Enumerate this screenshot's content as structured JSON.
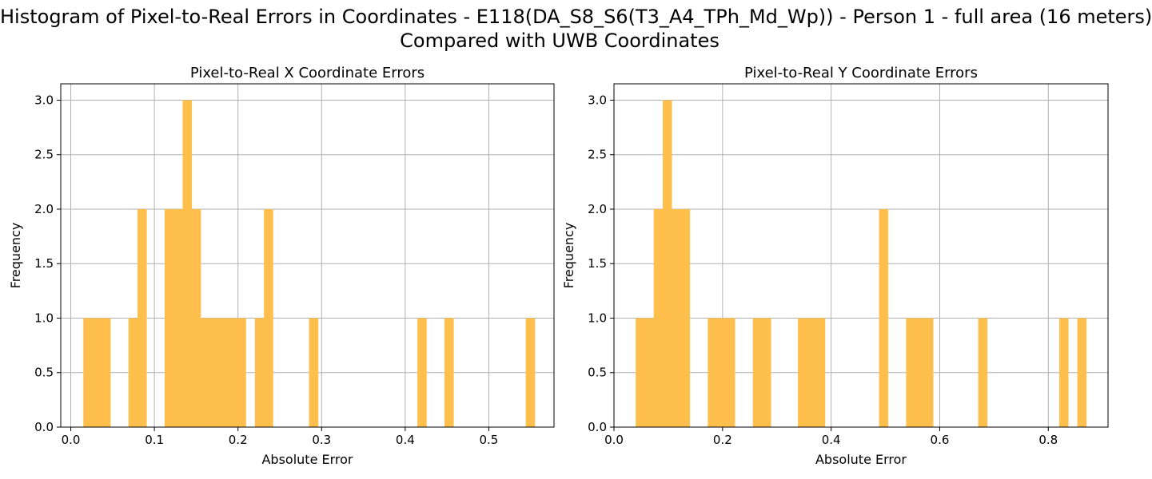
{
  "title_line1": "Histogram of Pixel-to-Real Errors in Coordinates - E118(DA_S8_S6(T3_A4_TPh_Md_Wp)) - Person 1 - full area (16 meters)",
  "title_line2": "Compared with UWB Coordinates",
  "colors": {
    "bar": "#FFBF4D",
    "grid": "#b0b0b0",
    "axis": "#000000"
  },
  "chart_data": [
    {
      "type": "bar",
      "title": "Pixel-to-Real X Coordinate Errors",
      "xlabel": "Absolute Error",
      "ylabel": "Frequency",
      "xlim": [
        -0.012,
        0.578
      ],
      "ylim": [
        0,
        3.15
      ],
      "xticks": [
        0.0,
        0.1,
        0.2,
        0.3,
        0.4,
        0.5
      ],
      "xtick_labels": [
        "0.0",
        "0.1",
        "0.2",
        "0.3",
        "0.4",
        "0.5"
      ],
      "yticks": [
        0.0,
        0.5,
        1.0,
        1.5,
        2.0,
        2.5,
        3.0
      ],
      "ytick_labels": [
        "0.0",
        "0.5",
        "1.0",
        "1.5",
        "2.0",
        "2.5",
        "3.0"
      ],
      "grid": true,
      "bin_width": 0.0108,
      "bins": [
        {
          "x": 0.015,
          "count": 1
        },
        {
          "x": 0.0258,
          "count": 1
        },
        {
          "x": 0.0366,
          "count": 1
        },
        {
          "x": 0.069,
          "count": 1
        },
        {
          "x": 0.0798,
          "count": 2
        },
        {
          "x": 0.1122,
          "count": 2
        },
        {
          "x": 0.123,
          "count": 2
        },
        {
          "x": 0.1338,
          "count": 3
        },
        {
          "x": 0.1446,
          "count": 2
        },
        {
          "x": 0.1554,
          "count": 1
        },
        {
          "x": 0.1662,
          "count": 1
        },
        {
          "x": 0.177,
          "count": 1
        },
        {
          "x": 0.1878,
          "count": 1
        },
        {
          "x": 0.1986,
          "count": 1
        },
        {
          "x": 0.2202,
          "count": 1
        },
        {
          "x": 0.231,
          "count": 2
        },
        {
          "x": 0.285,
          "count": 1
        },
        {
          "x": 0.4146,
          "count": 1
        },
        {
          "x": 0.447,
          "count": 1
        },
        {
          "x": 0.5442,
          "count": 1
        }
      ]
    },
    {
      "type": "bar",
      "title": "Pixel-to-Real Y Coordinate Errors",
      "xlabel": "Absolute Error",
      "ylabel": "Frequency",
      "xlim": [
        0.0,
        0.91
      ],
      "ylim": [
        0,
        3.15
      ],
      "xticks": [
        0.0,
        0.2,
        0.4,
        0.6,
        0.8
      ],
      "xtick_labels": [
        "0.0",
        "0.2",
        "0.4",
        "0.6",
        "0.8"
      ],
      "yticks": [
        0.0,
        0.5,
        1.0,
        1.5,
        2.0,
        2.5,
        3.0
      ],
      "ytick_labels": [
        "0.0",
        "0.5",
        "1.0",
        "1.5",
        "2.0",
        "2.5",
        "3.0"
      ],
      "grid": true,
      "bin_width": 0.0166,
      "bins": [
        {
          "x": 0.04,
          "count": 1
        },
        {
          "x": 0.0566,
          "count": 1
        },
        {
          "x": 0.0732,
          "count": 2
        },
        {
          "x": 0.0898,
          "count": 3
        },
        {
          "x": 0.1064,
          "count": 2
        },
        {
          "x": 0.123,
          "count": 2
        },
        {
          "x": 0.1728,
          "count": 1
        },
        {
          "x": 0.1894,
          "count": 1
        },
        {
          "x": 0.206,
          "count": 1
        },
        {
          "x": 0.2558,
          "count": 1
        },
        {
          "x": 0.2724,
          "count": 1
        },
        {
          "x": 0.3388,
          "count": 1
        },
        {
          "x": 0.3554,
          "count": 1
        },
        {
          "x": 0.372,
          "count": 1
        },
        {
          "x": 0.4882,
          "count": 2
        },
        {
          "x": 0.538,
          "count": 1
        },
        {
          "x": 0.5546,
          "count": 1
        },
        {
          "x": 0.5712,
          "count": 1
        },
        {
          "x": 0.6708,
          "count": 1
        },
        {
          "x": 0.8202,
          "count": 1
        },
        {
          "x": 0.8534,
          "count": 1
        }
      ]
    }
  ]
}
